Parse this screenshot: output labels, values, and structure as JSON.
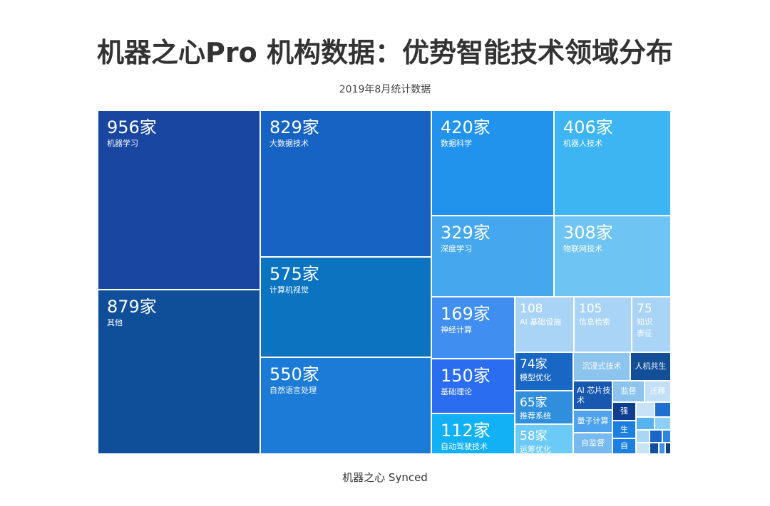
{
  "title": "机器之心Pro 机构数据：优势智能技术领域分布",
  "subtitle": "2019年8月统计数据",
  "footer": "机器之心 Synced",
  "chart_data": {
    "type": "treemap",
    "unit": "家",
    "items": [
      {
        "label": "机器学习",
        "value": 956,
        "value_text": "956家",
        "color": "#1846a0"
      },
      {
        "label": "其他",
        "value": 879,
        "value_text": "879家",
        "color": "#0f4f9a"
      },
      {
        "label": "大数据技术",
        "value": 829,
        "value_text": "829家",
        "color": "#1663c3"
      },
      {
        "label": "计算机视觉",
        "value": 575,
        "value_text": "575家",
        "color": "#0a74c0"
      },
      {
        "label": "自然语言处理",
        "value": 550,
        "value_text": "550家",
        "color": "#1c7bd7"
      },
      {
        "label": "数据科学",
        "value": 420,
        "value_text": "420家",
        "color": "#2293ec"
      },
      {
        "label": "机器人技术",
        "value": 406,
        "value_text": "406家",
        "color": "#3cb5f2"
      },
      {
        "label": "深度学习",
        "value": 329,
        "value_text": "329家",
        "color": "#45a7ed"
      },
      {
        "label": "物联网技术",
        "value": 308,
        "value_text": "308家",
        "color": "#6ec4f2"
      },
      {
        "label": "神经计算",
        "value": 169,
        "value_text": "169家",
        "color": "#3f8ef0"
      },
      {
        "label": "基础理论",
        "value": 150,
        "value_text": "150家",
        "color": "#2a6df0"
      },
      {
        "label": "自动驾驶技术",
        "value": 112,
        "value_text": "112家",
        "color": "#12b1f5"
      },
      {
        "label": "AI 基础设施",
        "value": 108,
        "value_text": "108",
        "color": "#a9d4f6"
      },
      {
        "label": "信息检索",
        "value": 105,
        "value_text": "105",
        "color": "#a9d4f6"
      },
      {
        "label": "知识表征",
        "value": 75,
        "value_text": "75",
        "color": "#a9d4f6"
      },
      {
        "label": "模型优化",
        "value": 74,
        "value_text": "74家",
        "color": "#1967c5"
      },
      {
        "label": "推荐系统",
        "value": 65,
        "value_text": "65家",
        "color": "#2f8fdd"
      },
      {
        "label": "运筹优化",
        "value": 58,
        "value_text": "58家",
        "color": "#6ccaf6"
      },
      {
        "label": "沉浸式技术",
        "value": null,
        "value_text": "",
        "color": "#8cc4ee"
      },
      {
        "label": "人机共生",
        "value": null,
        "value_text": "",
        "color": "#124f97"
      },
      {
        "label": "AI 芯片技术",
        "value": null,
        "value_text": "",
        "color": "#1858b0"
      },
      {
        "label": "监督",
        "value": null,
        "value_text": "",
        "color": "#8cc4ee"
      },
      {
        "label": "迁移",
        "value": null,
        "value_text": "",
        "color": "#c2e0f8"
      },
      {
        "label": "量子计算",
        "value": null,
        "value_text": "",
        "color": "#4ea3ec"
      },
      {
        "label": "自监督",
        "value": null,
        "value_text": "",
        "color": "#76baf0"
      },
      {
        "label": "强",
        "value": null,
        "value_text": "",
        "color": "#103e8f"
      },
      {
        "label": "生",
        "value": null,
        "value_text": "",
        "color": "#1d80e0"
      },
      {
        "label": "自",
        "value": null,
        "value_text": "",
        "color": "#1d80e0"
      },
      {
        "label": "",
        "value": null,
        "value_text": "",
        "color": "#c8e2f8"
      },
      {
        "label": "",
        "value": null,
        "value_text": "",
        "color": "#1f6fcf"
      },
      {
        "label": "",
        "value": null,
        "value_text": "",
        "color": "#56b3f0"
      },
      {
        "label": "",
        "value": null,
        "value_text": "",
        "color": "#8ecff7"
      },
      {
        "label": "",
        "value": null,
        "value_text": "",
        "color": "#a7d6f6"
      },
      {
        "label": "",
        "value": null,
        "value_text": "",
        "color": "#1a66c8"
      },
      {
        "label": "",
        "value": null,
        "value_text": "",
        "color": "#2f86e0"
      },
      {
        "label": "",
        "value": null,
        "value_text": "",
        "color": "#c5e4f9"
      },
      {
        "label": "",
        "value": null,
        "value_text": "",
        "color": "#0e4fa0"
      },
      {
        "label": "",
        "value": null,
        "value_text": "",
        "color": "#3f93e6"
      },
      {
        "label": "",
        "value": null,
        "value_text": "",
        "color": "#0b3f86"
      }
    ]
  }
}
